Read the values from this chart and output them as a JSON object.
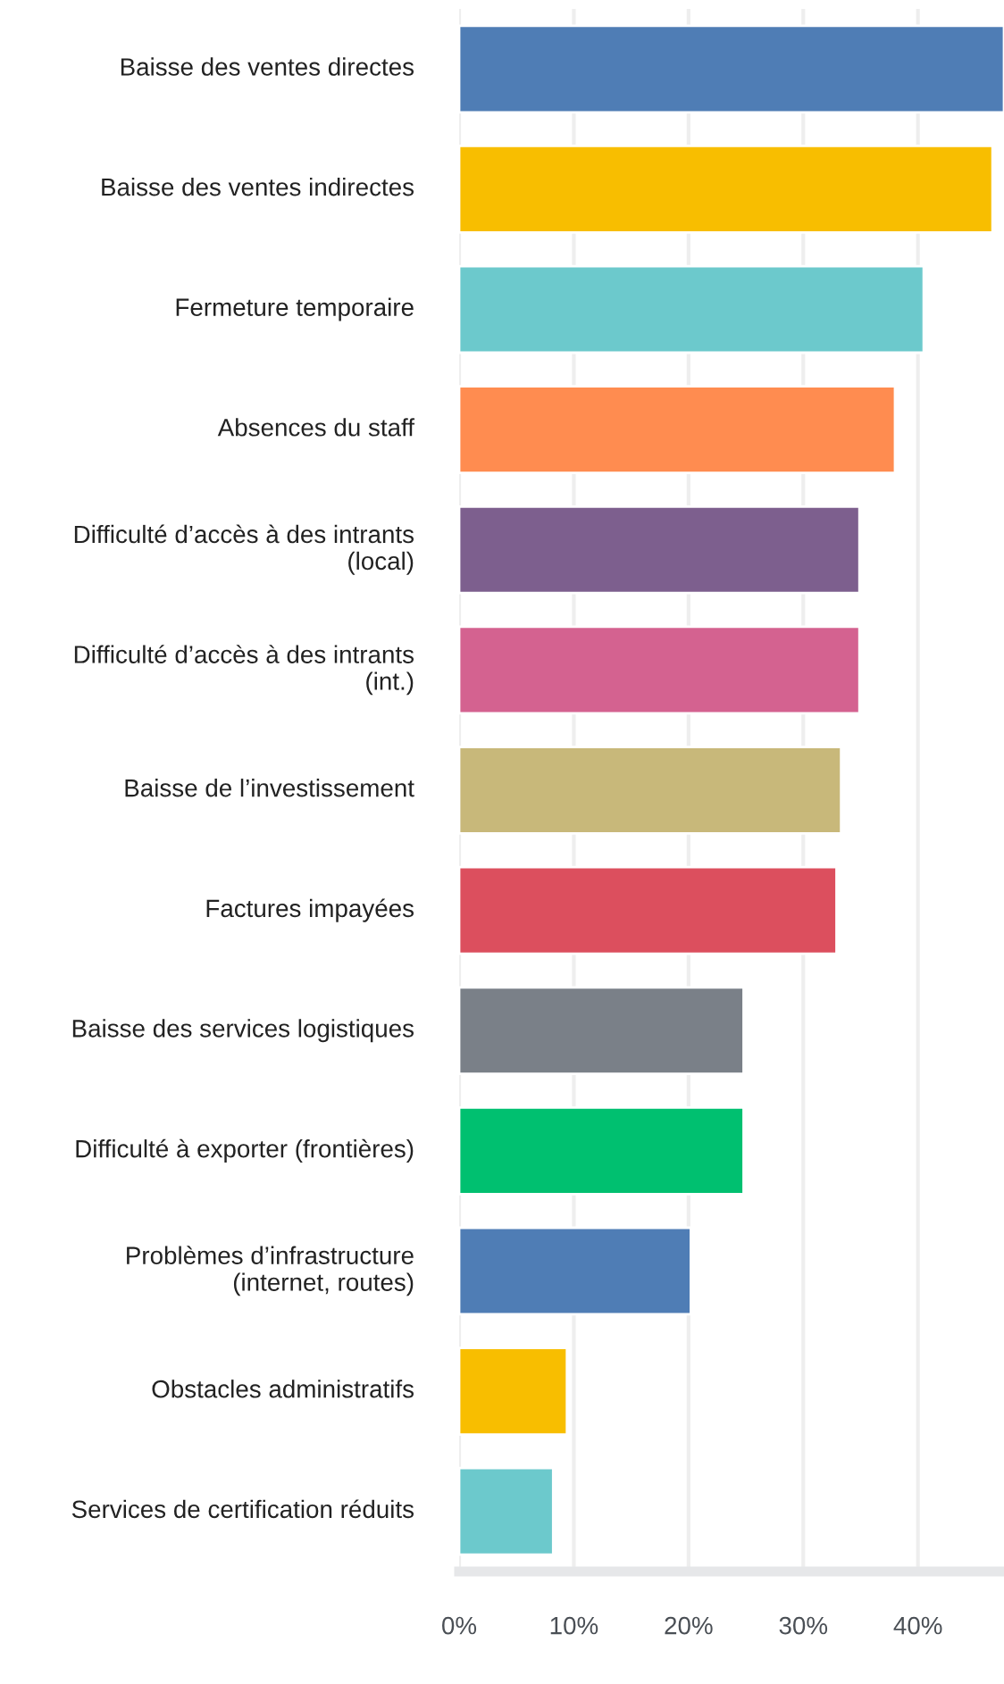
{
  "chart_data": {
    "type": "bar",
    "orientation": "horizontal",
    "categories": [
      "Baisse des ventes directes",
      "Baisse des ventes indirectes",
      "Fermeture temporaire",
      "Absences du staff",
      "Difficulté d’accès à des intrants\n(local)",
      "Difficulté d’accès à des intrants\n(int.)",
      "Baisse de l’investissement",
      "Factures impayées",
      "Baisse des services logistiques",
      "Difficulté à exporter (frontières)",
      "Problèmes d’infrastructure\n(internet, routes)",
      "Obstacles administratifs",
      "Services de certification réduits"
    ],
    "values": [
      47.5,
      46.5,
      40.5,
      38.0,
      34.9,
      34.9,
      33.3,
      32.9,
      24.8,
      24.8,
      20.2,
      9.4,
      8.2
    ],
    "colors": [
      "#4f7db5",
      "#f8be00",
      "#6cc9cc",
      "#ff8c50",
      "#7d5f8e",
      "#d46290",
      "#c8b87a",
      "#dc4f5e",
      "#7a8088",
      "#00c070",
      "#4f7db5",
      "#f8be00",
      "#6cc9cc"
    ],
    "xlim": [
      0,
      47.5
    ],
    "xticks": [
      {
        "value": 0,
        "label": "0%"
      },
      {
        "value": 10,
        "label": "10%"
      },
      {
        "value": 20,
        "label": "20%"
      },
      {
        "value": 30,
        "label": "30%"
      },
      {
        "value": 40,
        "label": "40%"
      }
    ],
    "grid": "x",
    "legend": false
  }
}
